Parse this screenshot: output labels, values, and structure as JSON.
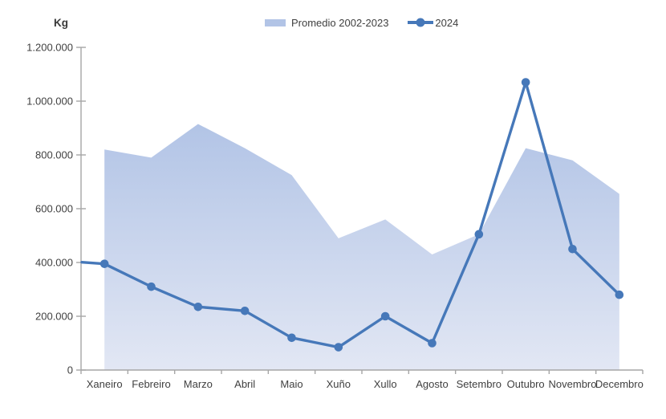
{
  "chart_data": {
    "type": "area+line",
    "unit_label": "Kg",
    "categories": [
      "Xaneiro",
      "Febreiro",
      "Marzo",
      "Abril",
      "Maio",
      "Xuño",
      "Xullo",
      "Agosto",
      "Setembro",
      "Outubro",
      "Novembro",
      "Decembro"
    ],
    "series": [
      {
        "name": "Promedio 2002-2023",
        "type": "area",
        "values": [
          820000,
          790000,
          915000,
          825000,
          725000,
          490000,
          560000,
          430000,
          505000,
          825000,
          780000,
          655000
        ],
        "fill_top": "#b2c4e6",
        "fill_bottom": "#e2e7f4"
      },
      {
        "name": "2024",
        "type": "line",
        "marker": "circle",
        "color": "#4678b9",
        "values": [
          395000,
          310000,
          235000,
          220000,
          120000,
          85000,
          200000,
          100000,
          505000,
          1070000,
          450000,
          280000
        ]
      }
    ],
    "y_axis": {
      "min": 0,
      "max": 1200000,
      "tick_step": 200000,
      "tick_labels": [
        "0",
        "200.000",
        "400.000",
        "600.000",
        "800.000",
        "1.000.000",
        "1.200.000"
      ]
    },
    "x_axis": {
      "label": ""
    },
    "legend_position": "top-center",
    "grid": false,
    "axis_color": "#a6a6a6",
    "text_color": "#404040"
  }
}
